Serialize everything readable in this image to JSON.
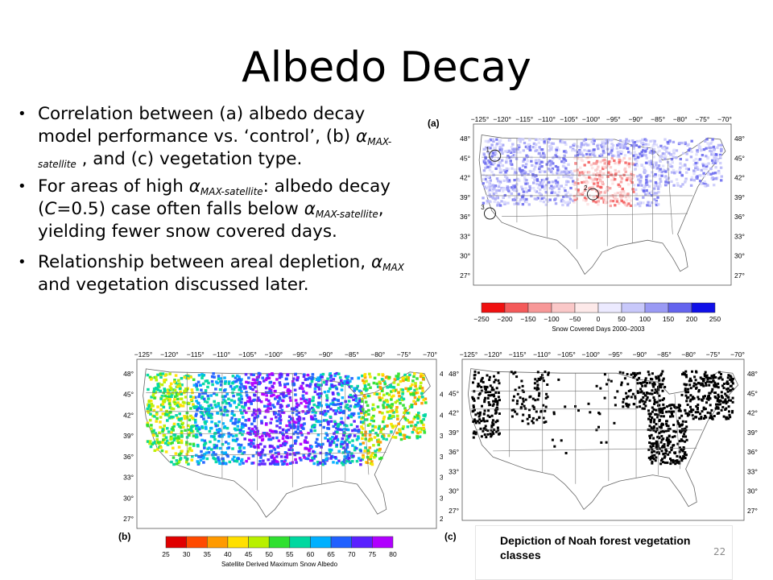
{
  "slide": {
    "title": "Albedo Decay",
    "page_number": "22",
    "bullets": [
      {
        "pre": "Correlation between (a) albedo decay model performance vs. ‘control’, (b) ",
        "alpha": "α",
        "sub": "MAX-satellite",
        "post": " , and (c) vegetation type."
      },
      {
        "pre": "For areas of high ",
        "alpha": "α",
        "sub": "MAX-satellite",
        "mid": ": albedo decay (",
        "c": "C",
        "mid2": "=0.5) case often falls below ",
        "alpha2": "α",
        "sub2": "MAX-satellite",
        "post": ", yielding fewer snow covered days."
      },
      {
        "pre": "Relationship between areal depletion, ",
        "alpha": "α",
        "sub": "MAX",
        "post": " and vegetation discussed later."
      }
    ]
  },
  "panels": {
    "a": {
      "label": "(a)",
      "colorbar_title": "Snow Covered Days 2000–2003",
      "ticks": [
        "−250",
        "−200",
        "−150",
        "−100",
        "−50",
        "0",
        "50",
        "100",
        "150",
        "200",
        "250"
      ],
      "colors": [
        "#f01010",
        "#f45a5a",
        "#f79898",
        "#fac8c8",
        "#fde9e9",
        "#eceaff",
        "#c8c8fa",
        "#9a9af4",
        "#6464ee",
        "#1010e8"
      ],
      "circle_labels": [
        "1",
        "2",
        "3"
      ]
    },
    "b": {
      "label": "(b)",
      "colorbar_title": "Satellite Derived Maximum Snow Albedo",
      "ticks": [
        "25",
        "30",
        "35",
        "40",
        "45",
        "50",
        "55",
        "60",
        "65",
        "70",
        "75",
        "80"
      ],
      "colors": [
        "#e00000",
        "#ff4a00",
        "#ff9a00",
        "#ffe000",
        "#b8f000",
        "#30e030",
        "#00d8a0",
        "#00b0ff",
        "#2060ff",
        "#5a20ff",
        "#b000ff"
      ]
    },
    "c": {
      "label": "(c)",
      "caption": "Depiction of Noah forest vegetation classes"
    },
    "map_axes": {
      "lon_ticks": [
        "−125°",
        "−120°",
        "−115°",
        "−110°",
        "−105°",
        "−100°",
        "−95°",
        "−90°",
        "−85°",
        "−80°",
        "−75°",
        "−70°"
      ],
      "lat_ticks": [
        "48°",
        "45°",
        "42°",
        "39°",
        "36°",
        "33°",
        "30°",
        "27°"
      ]
    }
  }
}
